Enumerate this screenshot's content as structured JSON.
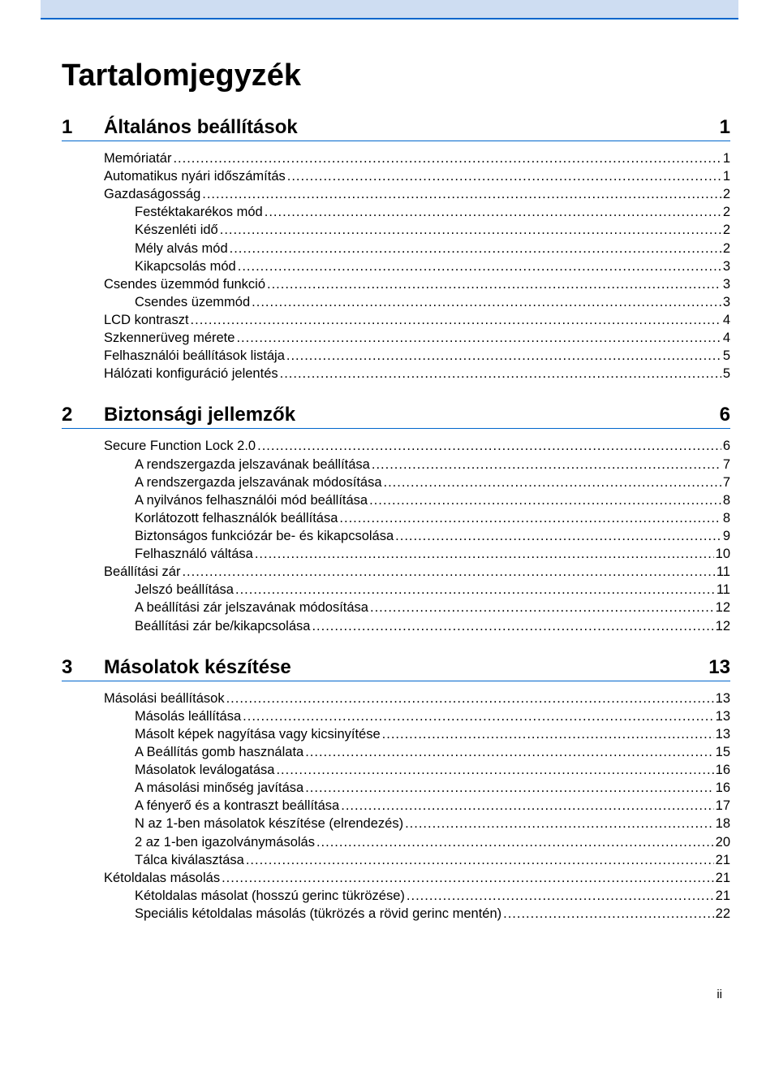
{
  "colors": {
    "header_bg": "#ceddf2",
    "accent_line": "#0066cc",
    "text": "#000000",
    "background": "#ffffff"
  },
  "title": "Tartalomjegyzék",
  "footer_page": "ii",
  "sections": [
    {
      "num": "1",
      "title": "Általános beállítások",
      "page": "1",
      "entries": [
        {
          "indent": 1,
          "label": "Memóriatár",
          "page": "1"
        },
        {
          "indent": 1,
          "label": "Automatikus nyári időszámítás",
          "page": "1"
        },
        {
          "indent": 1,
          "label": "Gazdaságosság",
          "page": "2"
        },
        {
          "indent": 2,
          "label": "Festéktakarékos mód",
          "page": "2"
        },
        {
          "indent": 2,
          "label": "Készenléti idő",
          "page": "2"
        },
        {
          "indent": 2,
          "label": "Mély alvás mód",
          "page": "2"
        },
        {
          "indent": 2,
          "label": "Kikapcsolás mód",
          "page": "3"
        },
        {
          "indent": 1,
          "label": "Csendes üzemmód funkció",
          "page": "3"
        },
        {
          "indent": 2,
          "label": "Csendes üzemmód",
          "page": "3"
        },
        {
          "indent": 1,
          "label": "LCD kontraszt",
          "page": "4"
        },
        {
          "indent": 1,
          "label": "Szkennerüveg mérete",
          "page": "4"
        },
        {
          "indent": 1,
          "label": "Felhasználói beállítások listája",
          "page": "5"
        },
        {
          "indent": 1,
          "label": "Hálózati konfiguráció jelentés",
          "page": "5"
        }
      ]
    },
    {
      "num": "2",
      "title": "Biztonsági jellemzők",
      "page": "6",
      "entries": [
        {
          "indent": 1,
          "label": "Secure Function Lock 2.0",
          "page": "6"
        },
        {
          "indent": 2,
          "label": "A rendszergazda jelszavának beállítása",
          "page": "7"
        },
        {
          "indent": 2,
          "label": "A rendszergazda jelszavának módosítása",
          "page": "7"
        },
        {
          "indent": 2,
          "label": "A nyilvános felhasználói mód beállítása",
          "page": "8"
        },
        {
          "indent": 2,
          "label": "Korlátozott felhasználók beállítása",
          "page": "8"
        },
        {
          "indent": 2,
          "label": "Biztonságos funkciózár be- és kikapcsolása",
          "page": "9"
        },
        {
          "indent": 2,
          "label": "Felhasználó váltása",
          "page": "10"
        },
        {
          "indent": 1,
          "label": "Beállítási zár",
          "page": "11"
        },
        {
          "indent": 2,
          "label": "Jelszó beállítása",
          "page": "11"
        },
        {
          "indent": 2,
          "label": "A beállítási zár jelszavának módosítása",
          "page": "12"
        },
        {
          "indent": 2,
          "label": "Beállítási zár be/kikapcsolása",
          "page": "12"
        }
      ]
    },
    {
      "num": "3",
      "title": "Másolatok készítése",
      "page": "13",
      "entries": [
        {
          "indent": 1,
          "label": "Másolási beállítások",
          "page": "13"
        },
        {
          "indent": 2,
          "label": "Másolás leállítása",
          "page": "13"
        },
        {
          "indent": 2,
          "label": "Másolt képek nagyítása vagy kicsinyítése",
          "page": "13"
        },
        {
          "indent": 2,
          "label": "A Beállítás gomb használata",
          "page": "15"
        },
        {
          "indent": 2,
          "label": "Másolatok leválogatása",
          "page": "16"
        },
        {
          "indent": 2,
          "label": "A másolási minőség javítása",
          "page": "16"
        },
        {
          "indent": 2,
          "label": "A fényerő és a kontraszt beállítása",
          "page": "17"
        },
        {
          "indent": 2,
          "label": "N az 1-ben másolatok készítése (elrendezés)",
          "page": "18"
        },
        {
          "indent": 2,
          "label": "2 az 1-ben igazolványmásolás",
          "page": "20"
        },
        {
          "indent": 2,
          "label": "Tálca kiválasztása",
          "page": "21"
        },
        {
          "indent": 1,
          "label": "Kétoldalas másolás",
          "page": "21"
        },
        {
          "indent": 2,
          "label": "Kétoldalas másolat (hosszú gerinc tükrözése)",
          "page": "21"
        },
        {
          "indent": 2,
          "label": "Speciális kétoldalas másolás (tükrözés a rövid gerinc mentén)",
          "page": "22"
        }
      ]
    }
  ]
}
